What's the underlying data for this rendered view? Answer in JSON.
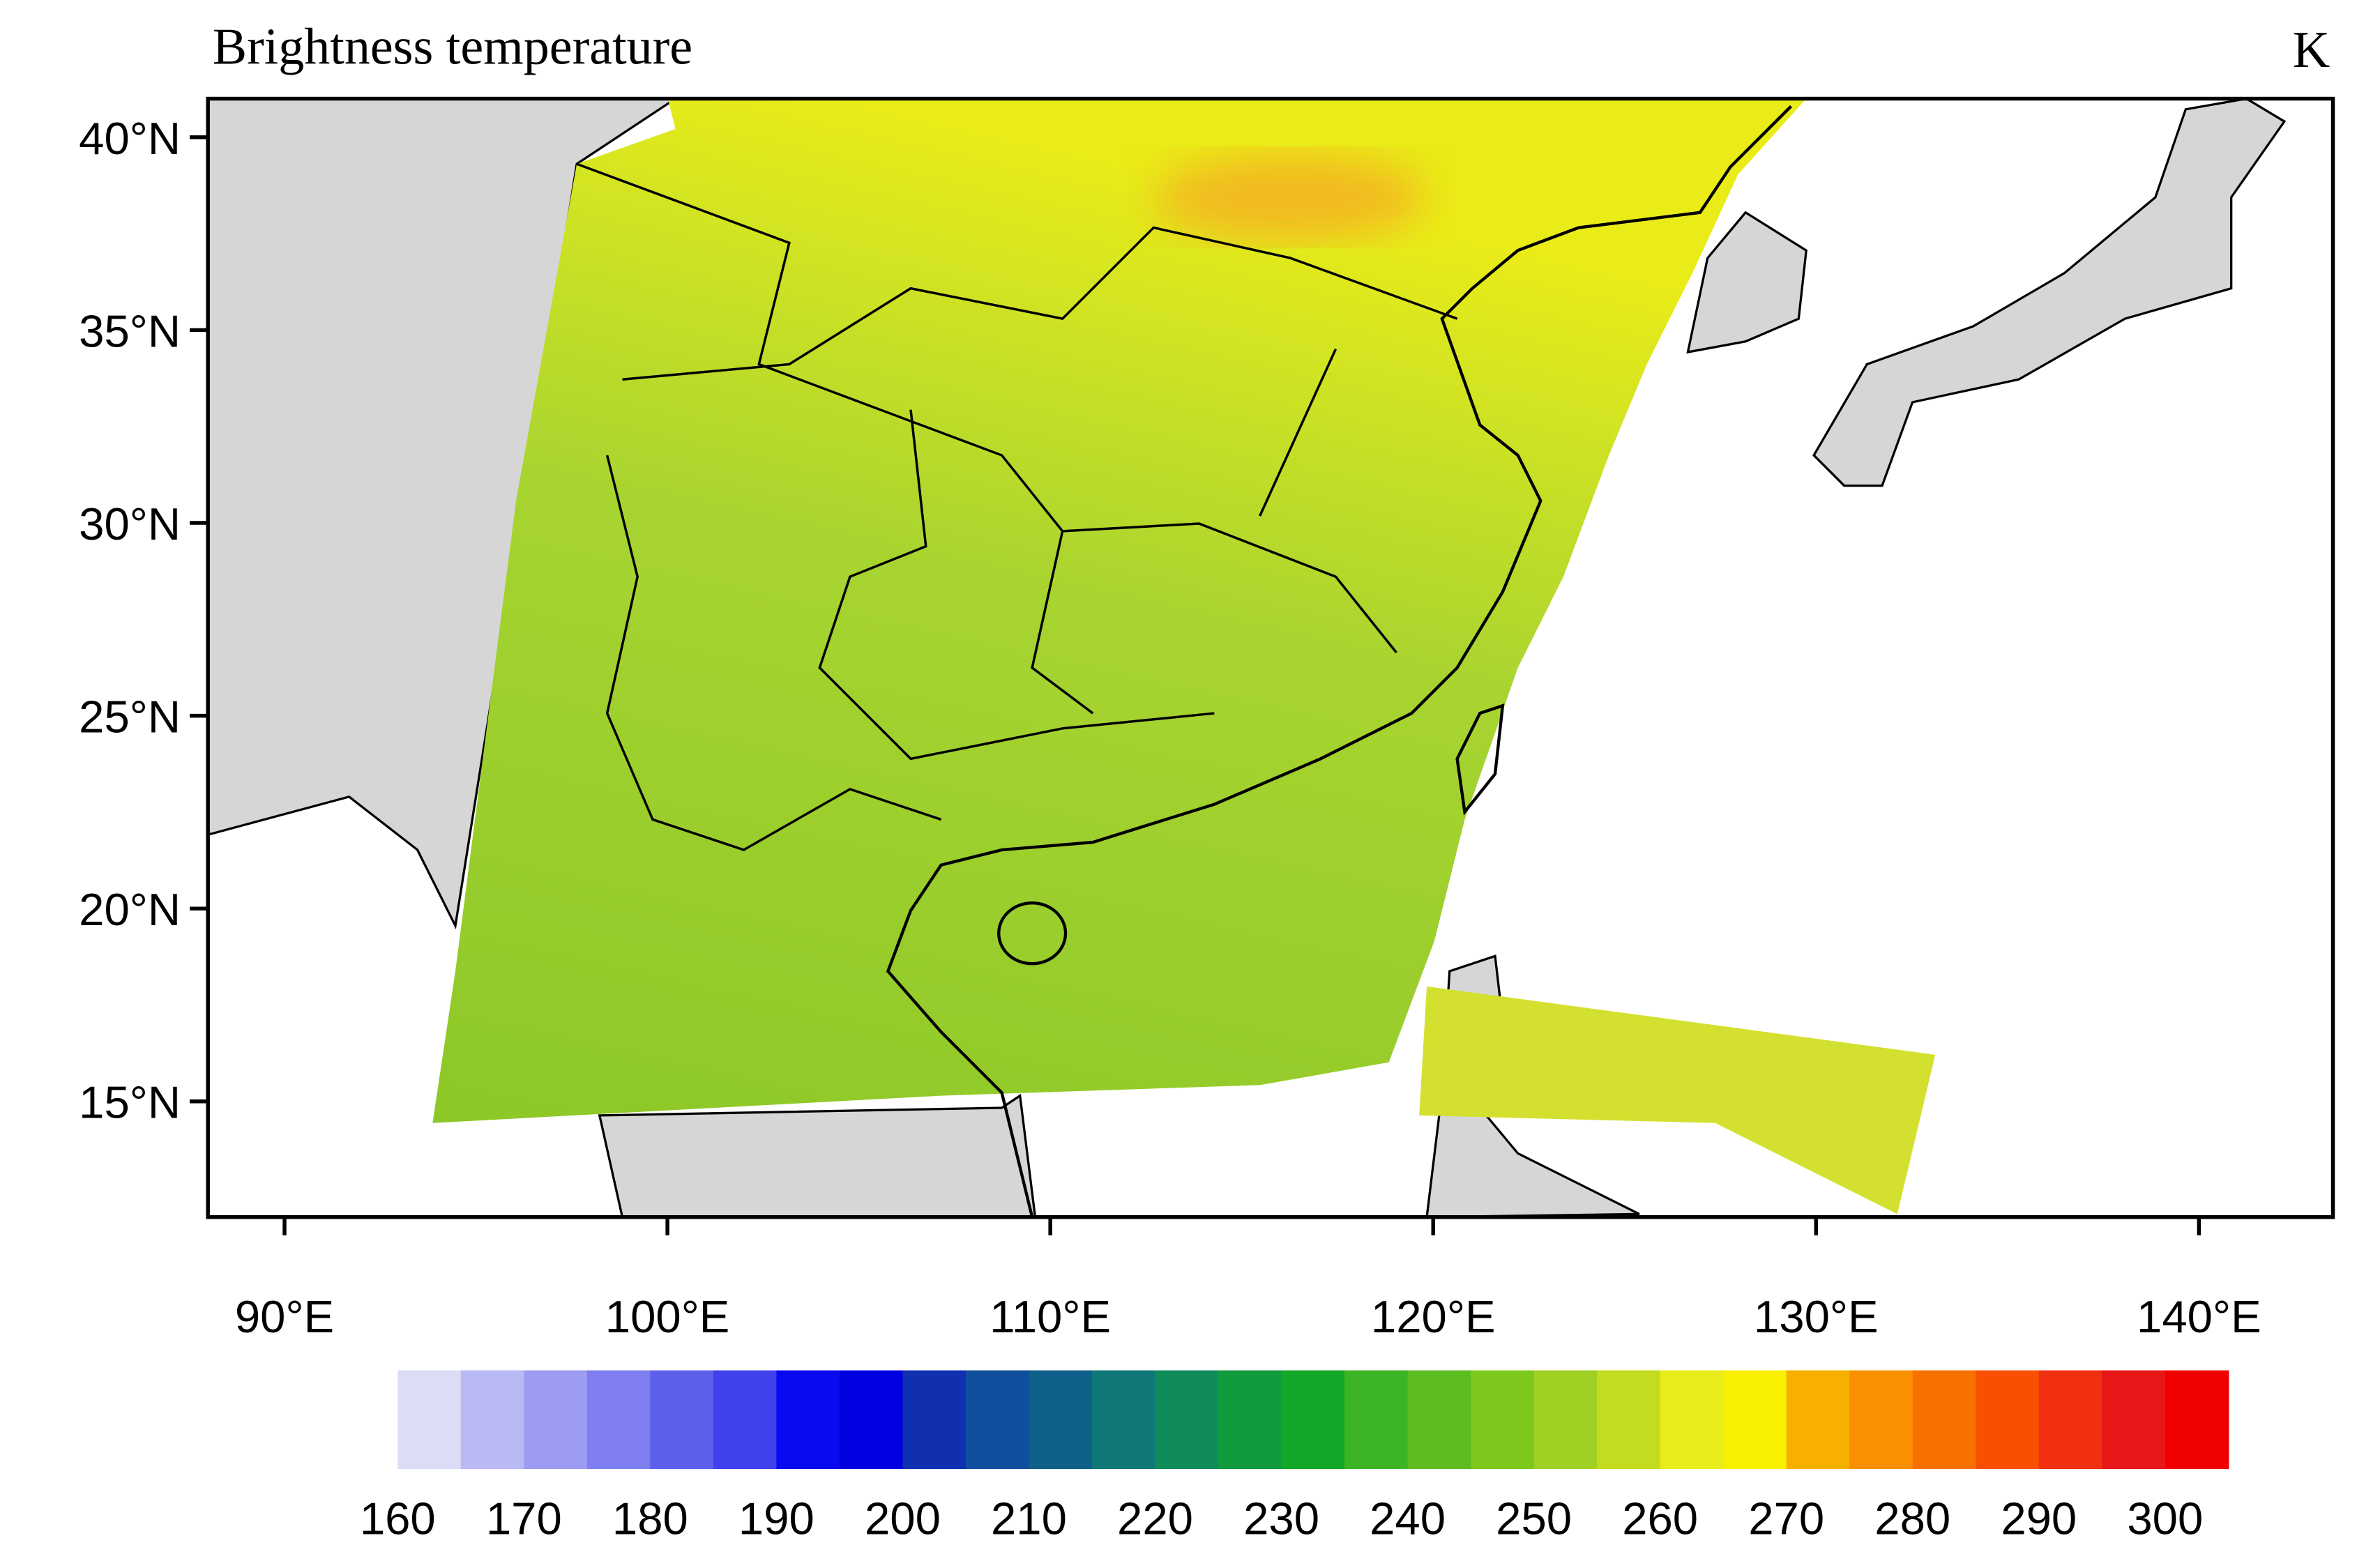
{
  "chart_data": {
    "type": "map",
    "title": "Brightness temperature",
    "units": "K",
    "xlim": [
      88,
      143.5
    ],
    "ylim": [
      12,
      41
    ],
    "xticks": [
      {
        "value": 90,
        "label": "90°E"
      },
      {
        "value": 100,
        "label": "100°E"
      },
      {
        "value": 110,
        "label": "110°E"
      },
      {
        "value": 120,
        "label": "120°E"
      },
      {
        "value": 130,
        "label": "130°E"
      },
      {
        "value": 140,
        "label": "140°E"
      }
    ],
    "yticks": [
      {
        "value": 15,
        "label": "15°N"
      },
      {
        "value": 20,
        "label": "20°N"
      },
      {
        "value": 25,
        "label": "25°N"
      },
      {
        "value": 30,
        "label": "30°N"
      },
      {
        "value": 35,
        "label": "35°N"
      },
      {
        "value": 40,
        "label": "40°N"
      }
    ],
    "colorbar": {
      "lim": [
        160,
        305
      ],
      "ticks": [
        160,
        170,
        180,
        190,
        200,
        210,
        220,
        230,
        240,
        250,
        260,
        270,
        280,
        290,
        300
      ],
      "colors": [
        "#dcdcf7",
        "#b9b9f4",
        "#9c9cf2",
        "#7e7ef0",
        "#5f5fee",
        "#4040ec",
        "#0a0af0",
        "#0000e0",
        "#1030b0",
        "#104e9e",
        "#10608c",
        "#107878",
        "#108c5a",
        "#109c3c",
        "#14a828",
        "#3cb424",
        "#5cbc20",
        "#7cc81c",
        "#a0d024",
        "#c4dc20",
        "#e8ec18",
        "#f8f000",
        "#f8b000",
        "#f89000",
        "#f87000",
        "#f85000",
        "#f03010",
        "#e81818",
        "#f00000"
      ]
    }
  }
}
